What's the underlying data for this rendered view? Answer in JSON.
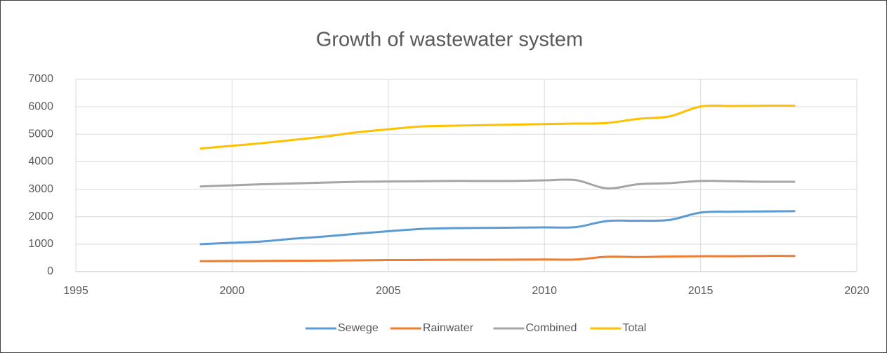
{
  "chart_data": {
    "type": "line",
    "title": "Growth of wastewater system",
    "x": [
      1999,
      2000,
      2001,
      2002,
      2003,
      2004,
      2005,
      2006,
      2007,
      2008,
      2009,
      2010,
      2011,
      2012,
      2013,
      2014,
      2015,
      2016,
      2017,
      2018
    ],
    "series": [
      {
        "name": "Sewege",
        "color": "#5b9bd5",
        "values": [
          1000,
          1050,
          1100,
          1200,
          1280,
          1380,
          1470,
          1550,
          1580,
          1590,
          1600,
          1610,
          1620,
          1840,
          1850,
          1880,
          2150,
          2180,
          2190,
          2200
        ]
      },
      {
        "name": "Rainwater",
        "color": "#ed7d31",
        "values": [
          380,
          385,
          390,
          395,
          400,
          410,
          420,
          425,
          430,
          430,
          435,
          440,
          440,
          540,
          530,
          550,
          560,
          560,
          570,
          570
        ]
      },
      {
        "name": "Combined",
        "color": "#a5a5a5",
        "values": [
          3100,
          3140,
          3180,
          3210,
          3240,
          3270,
          3280,
          3290,
          3300,
          3300,
          3300,
          3320,
          3330,
          3030,
          3180,
          3220,
          3300,
          3290,
          3270,
          3270
        ]
      },
      {
        "name": "Total",
        "color": "#ffc000",
        "values": [
          4480,
          4580,
          4680,
          4800,
          4920,
          5070,
          5180,
          5280,
          5310,
          5330,
          5350,
          5370,
          5390,
          5410,
          5560,
          5650,
          6010,
          6030,
          6040,
          6040
        ]
      }
    ],
    "xlim": [
      1995,
      2020
    ],
    "xticks": [
      1995,
      2000,
      2005,
      2010,
      2015,
      2020
    ],
    "ylim": [
      0,
      7000
    ],
    "yticks": [
      0,
      1000,
      2000,
      3000,
      4000,
      5000,
      6000,
      7000
    ],
    "grid": true,
    "legend": "bottom"
  }
}
